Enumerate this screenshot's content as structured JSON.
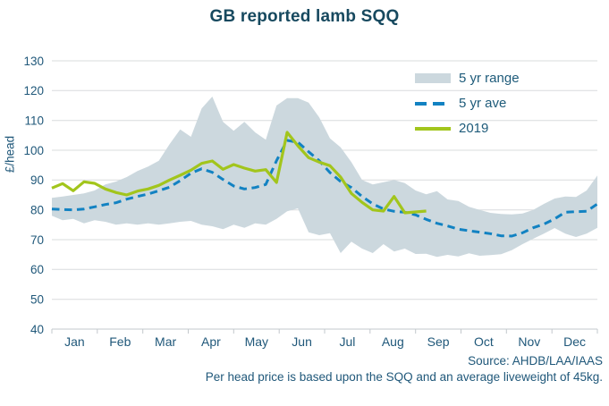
{
  "chart_data": {
    "type": "area",
    "title": "GB reported lamb SQQ",
    "ylabel": "£/head",
    "ylim": [
      40,
      130
    ],
    "ytick_step": 10,
    "grid": "horizontal",
    "legend_position": "top-right",
    "x_categories": [
      "Jan",
      "Feb",
      "Mar",
      "Apr",
      "May",
      "Jun",
      "Jul",
      "Aug",
      "Sep",
      "Oct",
      "Nov",
      "Dec"
    ],
    "x_unit": "weeks",
    "legend": [
      {
        "label": "5 yr range",
        "kind": "band",
        "color": "#ccd8de"
      },
      {
        "label": "5 yr ave",
        "kind": "dashed",
        "color": "#1282c2"
      },
      {
        "label": "2019",
        "kind": "solid",
        "color": "#a2c51c"
      }
    ],
    "series": {
      "range_high": [
        84,
        84.5,
        85,
        85.5,
        86.5,
        88.5,
        89.5,
        91,
        93,
        94.5,
        96.5,
        102,
        107,
        104.5,
        114,
        118,
        109.5,
        106.5,
        109.5,
        106,
        103.5,
        115,
        117.5,
        117.5,
        116,
        111,
        104,
        101,
        96,
        90,
        88.5,
        89.3,
        90,
        89,
        86.5,
        85.2,
        86.3,
        83.5,
        83,
        81,
        80,
        79,
        78.6,
        78.5,
        78.8,
        80,
        82,
        83.8,
        84.5,
        84.3,
        86.5,
        91.5
      ],
      "range_low": [
        78,
        76.5,
        77,
        75.5,
        76.5,
        76,
        75,
        75.5,
        75,
        75.5,
        75,
        75.5,
        76,
        76.3,
        75,
        74.5,
        73.5,
        75,
        74,
        75.5,
        75,
        77,
        79.5,
        80.5,
        72.5,
        71.5,
        72.2,
        65.5,
        69.3,
        67,
        65.5,
        68.5,
        66,
        67,
        65.2,
        65.3,
        64.2,
        64.9,
        64.4,
        65.4,
        64.6,
        64.8,
        65.1,
        66.5,
        68.5,
        70.3,
        72,
        73.9,
        72,
        70.9,
        72,
        74
      ],
      "five_yr_ave": [
        80.3,
        80.1,
        80,
        80.3,
        81,
        81.8,
        82.4,
        83.6,
        84.5,
        85.3,
        86.4,
        87.6,
        89.8,
        92.3,
        93.8,
        92.6,
        90.2,
        88,
        87,
        87.5,
        88.5,
        96.5,
        103.3,
        102.7,
        99.5,
        96.5,
        92.5,
        89.5,
        87.5,
        84.5,
        82,
        80.3,
        79.5,
        79.2,
        78.3,
        76.8,
        75.5,
        74.6,
        73.5,
        73,
        72.5,
        72,
        71.3,
        71.2,
        72.3,
        74,
        75.2,
        77,
        79.2,
        79.4,
        79.5,
        82
      ],
      "y2019": [
        87.3,
        88.8,
        86.4,
        89.4,
        88.9,
        87,
        85.8,
        85,
        86.3,
        87,
        88.2,
        90,
        91.6,
        93.3,
        95.6,
        96.4,
        93.6,
        95.2,
        94,
        93,
        93.5,
        89.2,
        106,
        101.5,
        97.5,
        96,
        94.8,
        91,
        85.5,
        82.5,
        80,
        79.6,
        84.5,
        79,
        79.3,
        79.6
      ]
    },
    "source": "Source: AHDB/LAA/IAAS",
    "note": "Per head price is based upon the SQQ and an average liveweight of 45kg."
  }
}
